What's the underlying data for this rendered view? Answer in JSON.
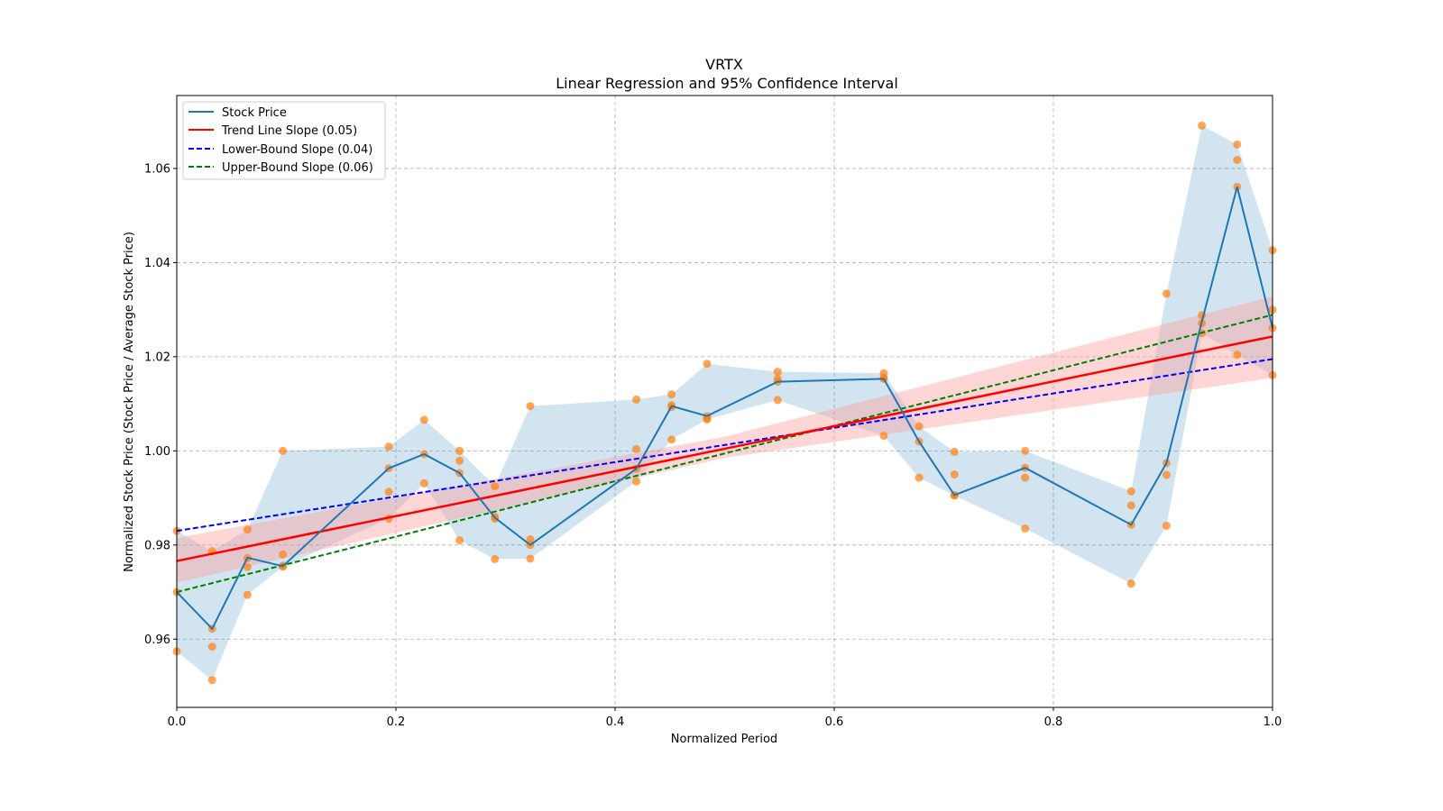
{
  "chart_data": {
    "type": "scatter",
    "title": "VRTX",
    "subtitle": "Linear Regression and 95% Confidence Interval",
    "xlabel": "Normalized Period",
    "ylabel": "Normalized Stock Price (Stock Price / Average Stock Price)",
    "xlim": [
      0.0,
      1.0
    ],
    "ylim": [
      0.9455,
      1.0755
    ],
    "xticks": [
      0.0,
      0.2,
      0.4,
      0.6,
      0.8,
      1.0
    ],
    "xtick_labels": [
      "0.0",
      "0.2",
      "0.4",
      "0.6",
      "0.8",
      "1.0"
    ],
    "yticks": [
      0.96,
      0.98,
      1.0,
      1.02,
      1.04,
      1.06
    ],
    "ytick_labels": [
      "0.96",
      "0.98",
      "1.00",
      "1.02",
      "1.04",
      "1.06"
    ],
    "grid": true,
    "legend_position": "top-left",
    "legend": [
      {
        "label": "Stock Price",
        "color": "#1f77b4",
        "style": "solid"
      },
      {
        "label": "Trend Line Slope (0.05)",
        "color": "#ff0000",
        "style": "solid"
      },
      {
        "label": "Lower-Bound Slope (0.04)",
        "color": "#0000ff",
        "style": "dashed"
      },
      {
        "label": "Upper-Bound Slope (0.06)",
        "color": "#008000",
        "style": "dashed"
      }
    ],
    "colors": {
      "stock_line": "#1f77b4",
      "stock_band": "#1f77b4",
      "scatter": "#ff7f0e",
      "trend": "#ff0000",
      "trend_band": "#ff9999",
      "lower": "#0000ff",
      "upper": "#008000"
    },
    "groups": [
      {
        "x": 0.0,
        "mean": 0.97,
        "points": [
          0.983,
          0.97,
          0.9574
        ]
      },
      {
        "x": 0.0323,
        "mean": 0.9622,
        "points": [
          0.9787,
          0.9622,
          0.9584,
          0.9513
        ]
      },
      {
        "x": 0.0645,
        "mean": 0.9773,
        "points": [
          0.9833,
          0.9772,
          0.9753,
          0.9694
        ]
      },
      {
        "x": 0.0968,
        "mean": 0.9755,
        "points": [
          1.0,
          0.978,
          0.9756,
          0.9754
        ]
      },
      {
        "x": 0.1935,
        "mean": 0.9963,
        "points": [
          1.0009,
          0.9963,
          0.9913,
          0.9856
        ]
      },
      {
        "x": 0.2258,
        "mean": 0.9993,
        "points": [
          1.0066,
          0.9993,
          0.9931
        ]
      },
      {
        "x": 0.2581,
        "mean": 0.9953,
        "points": [
          1.0,
          0.9979,
          0.9953,
          0.981
        ]
      },
      {
        "x": 0.2903,
        "mean": 0.9858,
        "points": [
          0.9925,
          0.986,
          0.9856,
          0.977
        ]
      },
      {
        "x": 0.3226,
        "mean": 0.98,
        "points": [
          1.0095,
          0.9812,
          0.98,
          0.9771
        ]
      },
      {
        "x": 0.4194,
        "mean": 0.9962,
        "points": [
          1.0109,
          1.0004,
          0.9962,
          0.9935
        ]
      },
      {
        "x": 0.4516,
        "mean": 1.0095,
        "points": [
          1.012,
          1.0097,
          1.0093,
          1.0024
        ]
      },
      {
        "x": 0.4839,
        "mean": 1.0074,
        "points": [
          1.0185,
          1.0074,
          1.0068,
          1.0067
        ]
      },
      {
        "x": 0.5484,
        "mean": 1.0147,
        "points": [
          1.0168,
          1.0153,
          1.0147,
          1.0108
        ]
      },
      {
        "x": 0.6452,
        "mean": 1.0153,
        "points": [
          1.0165,
          1.0155,
          1.0153,
          1.0032
        ]
      },
      {
        "x": 0.6774,
        "mean": 1.002,
        "points": [
          1.0052,
          1.002,
          0.9943
        ]
      },
      {
        "x": 0.7097,
        "mean": 0.9906,
        "points": [
          0.9998,
          0.995,
          0.9906,
          0.9905
        ]
      },
      {
        "x": 0.7742,
        "mean": 0.9964,
        "points": [
          1.0,
          0.9964,
          0.9943,
          0.9835
        ]
      },
      {
        "x": 0.871,
        "mean": 0.9843,
        "points": [
          0.9914,
          0.9884,
          0.9843,
          0.9718
        ]
      },
      {
        "x": 0.9032,
        "mean": 0.9974,
        "points": [
          1.0334,
          0.9974,
          0.9949,
          0.9841
        ]
      },
      {
        "x": 0.9355,
        "mean": 1.0275,
        "points": [
          1.0691,
          1.0288,
          1.0271,
          1.025
        ]
      },
      {
        "x": 0.9677,
        "mean": 1.0561,
        "points": [
          1.0651,
          1.0618,
          1.0561,
          1.0204
        ]
      },
      {
        "x": 1.0,
        "mean": 1.0261,
        "points": [
          1.0426,
          1.03,
          1.0261,
          1.0161
        ]
      }
    ],
    "trend_line": {
      "slope": 0.05,
      "y_at_x0": 0.9766,
      "y_at_x1": 1.0243
    },
    "lower_bound_line": {
      "slope": 0.04,
      "y_at_x0": 0.983,
      "y_at_x1": 1.0195
    },
    "upper_bound_line": {
      "slope": 0.06,
      "y_at_x0": 0.97,
      "y_at_x1": 1.0289
    },
    "trend_ci": {
      "x": [
        0.0,
        0.5,
        1.0
      ],
      "lower": [
        0.972,
        0.9985,
        1.0155
      ],
      "upper": [
        0.9815,
        1.003,
        1.0328
      ]
    }
  }
}
